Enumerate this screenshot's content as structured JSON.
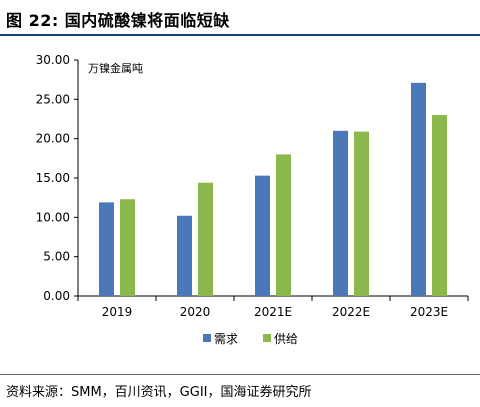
{
  "header": {
    "title": "图 22:  国内硫酸镍将面临短缺"
  },
  "footer": {
    "source": "资料来源：SMM，百川资讯，GGII，国海证券研究所"
  },
  "colors": {
    "demand": "#4a78b8",
    "supply": "#8bb84a",
    "title_rule": "#1a3e7a"
  },
  "chart_data": {
    "type": "bar",
    "title": "",
    "unit_label": "万镍金属吨",
    "xlabel": "",
    "ylabel": "",
    "categories": [
      "2019",
      "2020",
      "2021E",
      "2022E",
      "2023E"
    ],
    "series": [
      {
        "name": "需求",
        "values": [
          11.9,
          10.2,
          15.3,
          21.0,
          27.1
        ]
      },
      {
        "name": "供给",
        "values": [
          12.3,
          14.4,
          18.0,
          20.9,
          23.0
        ]
      }
    ],
    "ylim": [
      0,
      30
    ],
    "yticks": [
      "0.00",
      "5.00",
      "10.00",
      "15.00",
      "20.00",
      "25.00",
      "30.00"
    ],
    "grid": false,
    "legend_position": "bottom-center"
  }
}
